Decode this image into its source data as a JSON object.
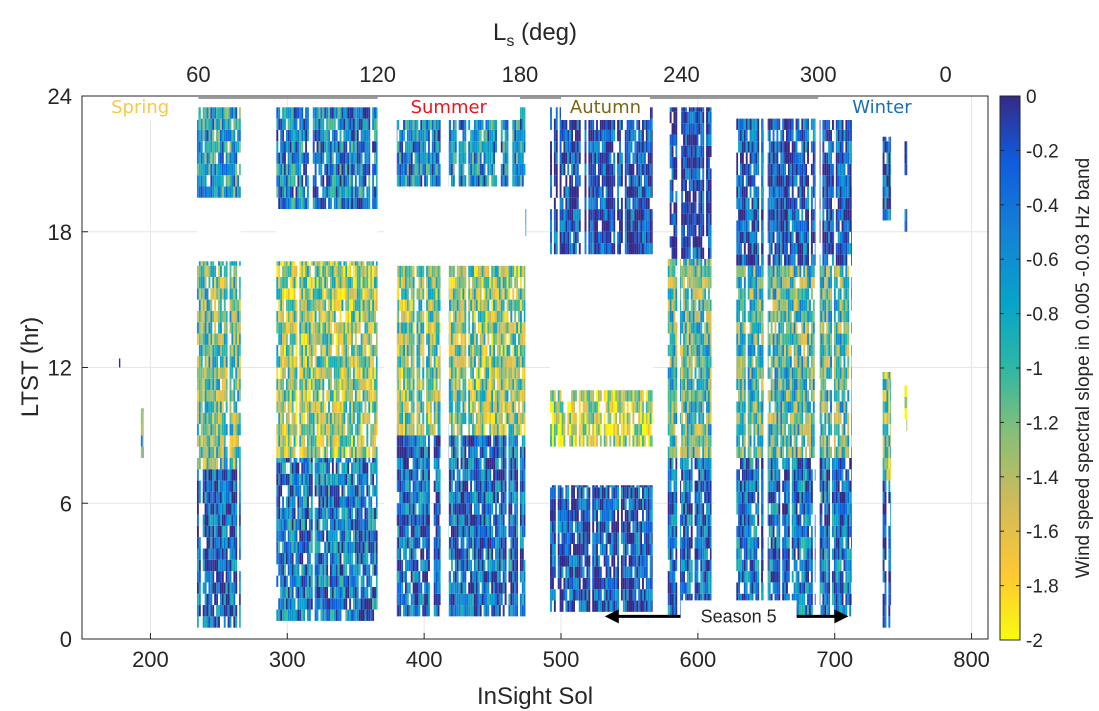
{
  "chart_data": {
    "type": "heatmap",
    "title": "",
    "xlabel": "InSight Sol",
    "ylabel": "LTST (hr)",
    "top_axis_label_main": "L",
    "top_axis_label_sub": "s",
    "top_axis_label_unit": " (deg)",
    "colorbar_label": "Wind speed spectral slope in 0.005 -0.03 Hz band",
    "xlim": [
      150,
      812
    ],
    "ylim": [
      0,
      24
    ],
    "x_ticks": [
      200,
      300,
      400,
      500,
      600,
      700,
      800
    ],
    "y_ticks": [
      0,
      6,
      12,
      18,
      24
    ],
    "top_ticks": [
      {
        "sol": 235,
        "label": "60"
      },
      {
        "sol": 366,
        "label": "120"
      },
      {
        "sol": 470,
        "label": "180"
      },
      {
        "sol": 588,
        "label": "240"
      },
      {
        "sol": 688,
        "label": "300"
      },
      {
        "sol": 781,
        "label": "0"
      }
    ],
    "color_range": [
      -2,
      0
    ],
    "colorbar_ticks": [
      "0",
      "-0.2",
      "-0.4",
      "-0.6",
      "-0.8",
      "-1",
      "-1.2",
      "-1.4",
      "-1.6",
      "-1.8",
      "-2"
    ],
    "colorscale": "parula",
    "grid": true,
    "season_bands": [
      {
        "label": "Spring",
        "color": "#f6c84e",
        "sol_start": 150,
        "sol_end": 235
      },
      {
        "label": "Summer",
        "color": "#e8161b",
        "sol_start": 366,
        "sol_end": 470
      },
      {
        "label": "Autumn",
        "color": "#7b6514",
        "sol_start": 500,
        "sol_end": 565
      },
      {
        "label": "Winter",
        "color": "#1a6fb4",
        "sol_start": 688,
        "sol_end": 781
      }
    ],
    "season5": {
      "label": "Season 5",
      "sol_start": 532,
      "sol_end": 710,
      "ltst": 1.0
    },
    "data_blocks": [
      {
        "sol_start": 234,
        "sol_end": 266,
        "ltst_start": 19.5,
        "ltst_end": 23.5,
        "value": -0.75
      },
      {
        "sol_start": 234,
        "sol_end": 266,
        "ltst_start": 7.5,
        "ltst_end": 16.7,
        "value": -1.15
      },
      {
        "sol_start": 234,
        "sol_end": 266,
        "ltst_start": 0.5,
        "ltst_end": 7.5,
        "value": -0.3
      },
      {
        "sol_start": 292,
        "sol_end": 366,
        "ltst_start": 19.0,
        "ltst_end": 23.5,
        "value": -0.55
      },
      {
        "sol_start": 292,
        "sol_end": 366,
        "ltst_start": 8.0,
        "ltst_end": 16.7,
        "value": -1.35
      },
      {
        "sol_start": 292,
        "sol_end": 366,
        "ltst_start": 0.8,
        "ltst_end": 8.0,
        "value": -0.45
      },
      {
        "sol_start": 372,
        "sol_end": 474,
        "ltst_start": 20.0,
        "ltst_end": 23.5,
        "value": -0.6
      },
      {
        "sol_start": 372,
        "sol_end": 474,
        "ltst_start": 9.0,
        "ltst_end": 16.5,
        "value": -1.3
      },
      {
        "sol_start": 372,
        "sol_end": 474,
        "ltst_start": 1.0,
        "ltst_end": 9.0,
        "value": -0.35
      },
      {
        "sol_start": 446,
        "sol_end": 474,
        "ltst_start": 17.8,
        "ltst_end": 19.0,
        "value": -0.95
      },
      {
        "sol_start": 492,
        "sol_end": 567,
        "ltst_start": 17.0,
        "ltst_end": 23.5,
        "value": -0.15
      },
      {
        "sol_start": 492,
        "sol_end": 567,
        "ltst_start": 8.5,
        "ltst_end": 11.0,
        "value": -1.55
      },
      {
        "sol_start": 492,
        "sol_end": 567,
        "ltst_start": 1.2,
        "ltst_end": 6.8,
        "value": -0.2
      },
      {
        "sol_start": 578,
        "sol_end": 610,
        "ltst_start": 16.8,
        "ltst_end": 23.5,
        "value": -0.1
      },
      {
        "sol_start": 578,
        "sol_end": 610,
        "ltst_start": 8.0,
        "ltst_end": 16.8,
        "value": -1.1
      },
      {
        "sol_start": 578,
        "sol_end": 610,
        "ltst_start": 1.0,
        "ltst_end": 8.0,
        "value": -0.35
      },
      {
        "sol_start": 628,
        "sol_end": 712,
        "ltst_start": 16.5,
        "ltst_end": 23.0,
        "value": -0.2
      },
      {
        "sol_start": 628,
        "sol_end": 712,
        "ltst_start": 8.0,
        "ltst_end": 16.5,
        "value": -1.05
      },
      {
        "sol_start": 628,
        "sol_end": 712,
        "ltst_start": 1.0,
        "ltst_end": 8.0,
        "value": -0.4
      },
      {
        "sol_start": 735,
        "sol_end": 741,
        "ltst_start": 18.5,
        "ltst_end": 22.2,
        "value": -0.35
      },
      {
        "sol_start": 735,
        "sol_end": 741,
        "ltst_start": 7.0,
        "ltst_end": 11.8,
        "value": -1.3
      },
      {
        "sol_start": 735,
        "sol_end": 741,
        "ltst_start": 0.5,
        "ltst_end": 7.0,
        "value": -0.25
      },
      {
        "sol_start": 751,
        "sol_end": 753,
        "ltst_start": 20.5,
        "ltst_end": 22.5,
        "value": -0.3
      },
      {
        "sol_start": 751,
        "sol_end": 753,
        "ltst_start": 18.0,
        "ltst_end": 19.0,
        "value": -0.35
      },
      {
        "sol_start": 751,
        "sol_end": 753,
        "ltst_start": 9.2,
        "ltst_end": 11.2,
        "value": -1.7
      },
      {
        "sol_start": 193,
        "sol_end": 195,
        "ltst_start": 8.0,
        "ltst_end": 10.2,
        "value": -0.9
      },
      {
        "sol_start": 177,
        "sol_end": 178,
        "ltst_start": 12.0,
        "ltst_end": 12.4,
        "value": -0.5
      }
    ],
    "data_gaps": [
      {
        "sol_start": 372,
        "sol_end": 474,
        "ltst_start": 16.5,
        "ltst_end": 20.0
      },
      {
        "sol_start": 492,
        "sol_end": 567,
        "ltst_start": 6.8,
        "ltst_end": 8.5
      },
      {
        "sol_start": 492,
        "sol_end": 567,
        "ltst_start": 11.0,
        "ltst_end": 17.0
      },
      {
        "sol_start": 234,
        "sol_end": 266,
        "ltst_start": 16.7,
        "ltst_end": 19.5
      },
      {
        "sol_start": 292,
        "sol_end": 366,
        "ltst_start": 16.7,
        "ltst_end": 19.0
      },
      {
        "sol_start": 371,
        "sol_end": 380,
        "ltst_start": 0.0,
        "ltst_end": 24.0
      },
      {
        "sol_start": 412,
        "sol_end": 418,
        "ltst_start": 0.0,
        "ltst_end": 24.0
      },
      {
        "sol_start": 612,
        "sol_end": 628,
        "ltst_start": 0.0,
        "ltst_end": 24.0
      },
      {
        "sol_start": 648,
        "sol_end": 651,
        "ltst_start": 0.0,
        "ltst_end": 24.0
      },
      {
        "sol_start": 686,
        "sol_end": 689,
        "ltst_start": 0.0,
        "ltst_end": 24.0
      },
      {
        "sol_start": 585,
        "sol_end": 587,
        "ltst_start": 0.0,
        "ltst_end": 24.0
      }
    ]
  }
}
